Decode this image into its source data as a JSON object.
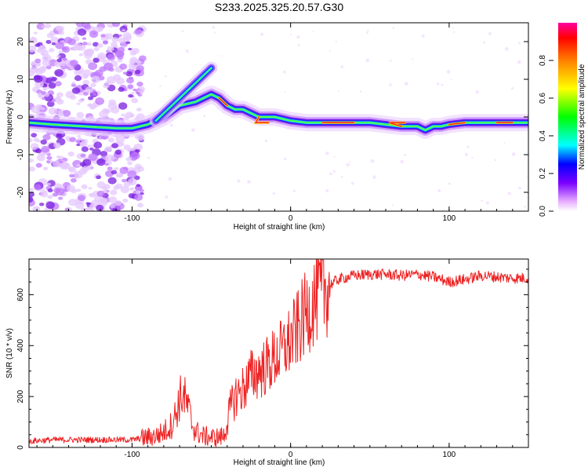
{
  "chart_data": [
    {
      "type": "heatmap",
      "title": "S233.2025.325.20.57.G30",
      "xlabel": "Height of straight line (km)",
      "ylabel": "Frequency (Hz)",
      "xlim": [
        -165,
        150
      ],
      "ylim": [
        -25,
        25
      ],
      "x_ticks": [
        -100,
        0,
        100
      ],
      "x_tick_labels": [
        "-100",
        "0",
        "100"
      ],
      "y_ticks": [
        -20,
        -10,
        0,
        10,
        20
      ],
      "y_tick_labels": [
        "-20",
        "-10",
        "0",
        "10",
        "20"
      ],
      "colorbar": {
        "label": "Normalized spectral amplitude",
        "range": [
          0,
          1
        ],
        "ticks": [
          0.0,
          0.2,
          0.4,
          0.6,
          0.8
        ],
        "tick_labels": [
          "0.0",
          "0.2",
          "0.4",
          "0.6",
          "0.8"
        ],
        "colormap": "rainbow"
      },
      "ridge": {
        "x": [
          -165,
          -150,
          -130,
          -110,
          -100,
          -90,
          -80,
          -70,
          -60,
          -55,
          -50,
          -45,
          -40,
          -35,
          -30,
          -20,
          -10,
          0,
          10,
          20,
          30,
          40,
          50,
          60,
          70,
          80,
          85,
          90,
          95,
          100,
          110,
          120,
          130,
          140,
          150
        ],
        "y": [
          -1.5,
          -2,
          -2.5,
          -3,
          -3,
          -2,
          0,
          3,
          4,
          5,
          6,
          5,
          3,
          2,
          2,
          0,
          0,
          -1,
          -1.5,
          -1.5,
          -1.5,
          -1.5,
          -1.5,
          -2,
          -2.5,
          -2.5,
          -3.5,
          -2.5,
          -2.5,
          -2,
          -1.5,
          -1.5,
          -1.5,
          -1.5,
          -1.5
        ]
      },
      "branch": {
        "x": [
          -85,
          -80,
          -75,
          -70,
          -65,
          -60,
          -55,
          -50
        ],
        "y": [
          -1,
          1,
          3,
          5,
          7,
          9,
          11,
          13
        ]
      }
    },
    {
      "type": "line",
      "title": "",
      "xlabel": "Height of straight line (km)",
      "ylabel": "SNR (10 * v/v)",
      "xlim": [
        -165,
        150
      ],
      "ylim": [
        0,
        740
      ],
      "x_ticks": [
        -100,
        0,
        100
      ],
      "x_tick_labels": [
        "-100",
        "0",
        "100"
      ],
      "y_ticks": [
        0,
        200,
        400,
        600
      ],
      "y_tick_labels": [
        "0",
        "200",
        "400",
        "600"
      ],
      "series": [
        {
          "name": "SNR",
          "color": "#ee2222",
          "x": [
            -165,
            -150,
            -130,
            -110,
            -100,
            -95,
            -85,
            -80,
            -75,
            -72,
            -70,
            -68,
            -66,
            -64,
            -62,
            -60,
            -58,
            -55,
            -50,
            -45,
            -42,
            -40,
            -38,
            -35,
            -30,
            -25,
            -20,
            -15,
            -10,
            -5,
            0,
            5,
            10,
            15,
            20,
            25,
            30,
            40,
            50,
            60,
            70,
            80,
            90,
            100,
            110,
            120,
            130,
            140,
            150
          ],
          "y": [
            25,
            30,
            30,
            30,
            30,
            35,
            45,
            60,
            90,
            140,
            190,
            210,
            180,
            140,
            90,
            65,
            55,
            45,
            40,
            40,
            45,
            100,
            150,
            200,
            230,
            280,
            300,
            320,
            350,
            380,
            420,
            470,
            530,
            580,
            610,
            640,
            660,
            675,
            680,
            680,
            675,
            680,
            670,
            650,
            660,
            675,
            670,
            665,
            665
          ]
        }
      ]
    }
  ]
}
